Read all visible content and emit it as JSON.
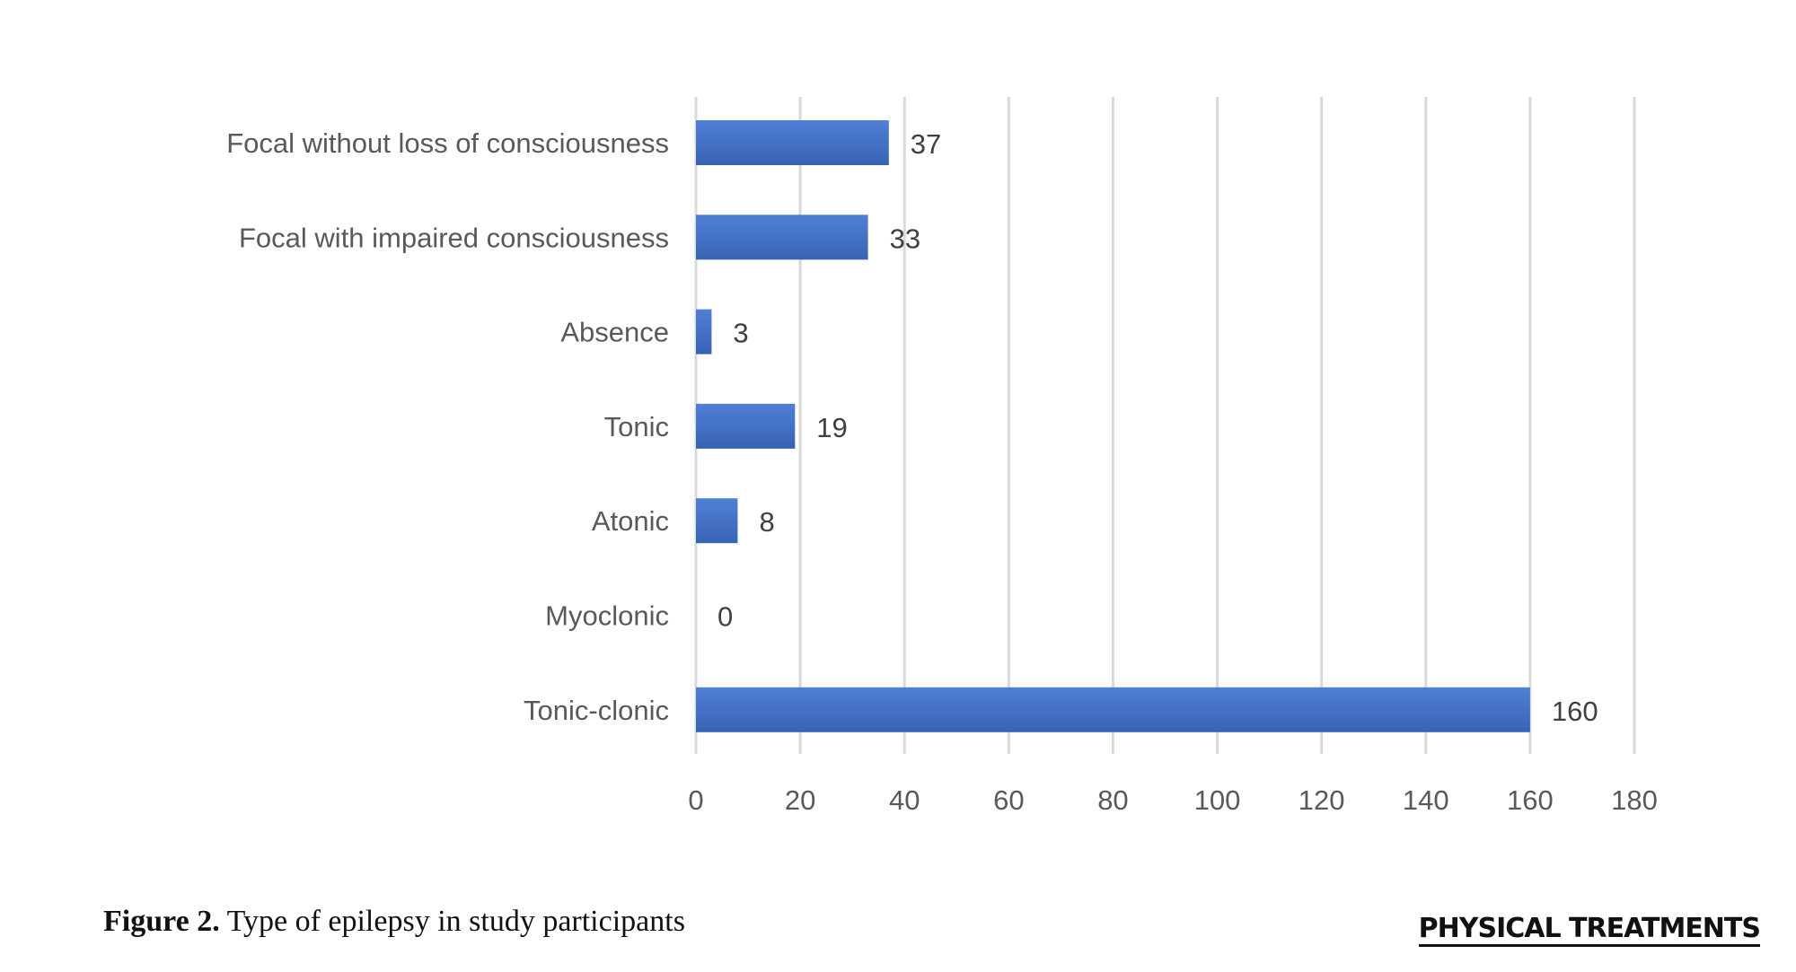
{
  "chart_data": {
    "type": "bar",
    "orientation": "horizontal",
    "categories": [
      "Focal without loss of consciousness",
      "Focal with impaired consciousness",
      "Absence",
      "Tonic",
      "Atonic",
      "Myoclonic",
      "Tonic-clonic"
    ],
    "values": [
      37,
      33,
      3,
      19,
      8,
      0,
      160
    ],
    "data_labels": [
      "37",
      "33",
      "3",
      "19",
      "8",
      "0",
      "160"
    ],
    "xlim": [
      0,
      180
    ],
    "x_ticks": [
      0,
      20,
      40,
      60,
      80,
      100,
      120,
      140,
      160,
      180
    ],
    "x_tick_labels": [
      "0",
      "20",
      "40",
      "60",
      "80",
      "100",
      "120",
      "140",
      "160",
      "180"
    ],
    "grid": "vertical",
    "legend": "none",
    "bar_color": "#4472C4",
    "gridline_color": "#D9D9D9",
    "label_color": "#595959"
  },
  "caption": {
    "label": "Figure 2.",
    "text": " Type of epilepsy in study participants"
  },
  "brand": {
    "text": "PHYSICAL TREATMENTS"
  }
}
